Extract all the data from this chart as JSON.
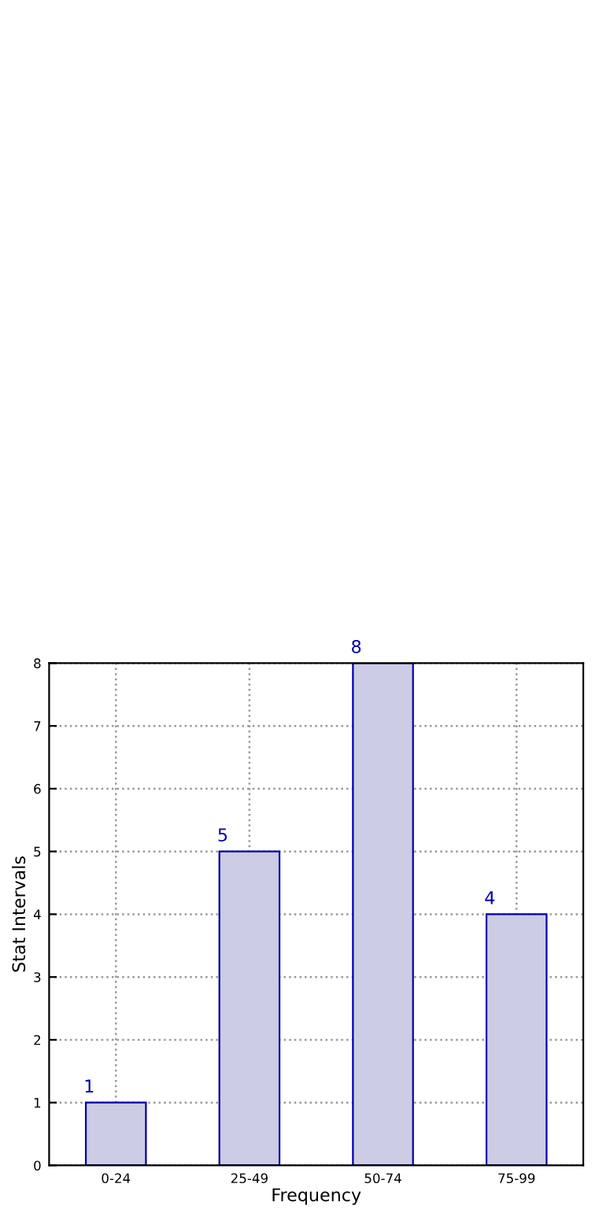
{
  "chart_data": {
    "type": "bar",
    "xlabel": "Frequency",
    "ylabel": "Stat Intervals",
    "categories": [
      "0-24",
      "25-49",
      "50-74",
      "75-99"
    ],
    "values": [
      1,
      5,
      8,
      4
    ],
    "color": "#cccce5",
    "ylim": [
      0,
      8
    ],
    "yticks": [
      0,
      1,
      2,
      3,
      4,
      5,
      6,
      7,
      8
    ],
    "grid": true,
    "data_labels": true
  }
}
